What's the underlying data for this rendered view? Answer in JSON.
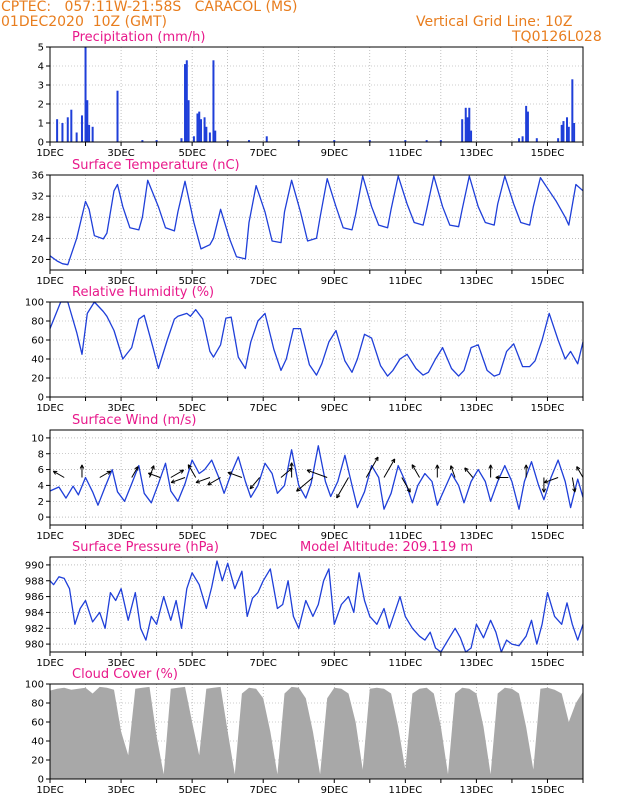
{
  "header": {
    "line1": "CPTEC:   057:11W-21:58S   CARACOL (MS)",
    "line2": "01DEC2020  10Z (GMT)",
    "grid_note": "Vertical Grid Line: 10Z",
    "code": "TQ0126L028"
  },
  "colors": {
    "header": "#e87d1e",
    "title": "#e8198b",
    "line": "#1f3fd9",
    "cloud": "#a8a8a8",
    "grid": "#999999"
  },
  "chart_data": [
    {
      "id": "precipitation",
      "type": "bar",
      "title": "Precipitation (mm/h)",
      "ylim": [
        0,
        5
      ],
      "yticks": [
        "0",
        "1",
        "2",
        "3",
        "4",
        "5"
      ],
      "xlabels": [
        "1DEC",
        "3DEC",
        "5DEC",
        "7DEC",
        "9DEC",
        "11DEC",
        "13DEC",
        "15DEC"
      ],
      "bars": [
        [
          0.2,
          1.2
        ],
        [
          0.35,
          1.0
        ],
        [
          0.5,
          1.3
        ],
        [
          0.6,
          1.7
        ],
        [
          0.75,
          0.5
        ],
        [
          0.9,
          1.4
        ],
        [
          1.0,
          5.0
        ],
        [
          1.05,
          2.2
        ],
        [
          1.1,
          0.9
        ],
        [
          1.2,
          0.8
        ],
        [
          1.9,
          2.7
        ],
        [
          2.6,
          0.1
        ],
        [
          3.0,
          0.1
        ],
        [
          3.7,
          0.2
        ],
        [
          3.8,
          4.1
        ],
        [
          3.85,
          4.3
        ],
        [
          3.9,
          2.2
        ],
        [
          4.05,
          0.3
        ],
        [
          4.15,
          1.5
        ],
        [
          4.2,
          1.6
        ],
        [
          4.25,
          1.2
        ],
        [
          4.35,
          1.3
        ],
        [
          4.4,
          0.8
        ],
        [
          4.5,
          0.5
        ],
        [
          4.6,
          4.3
        ],
        [
          4.65,
          0.6
        ],
        [
          5.0,
          0.1
        ],
        [
          5.6,
          0.1
        ],
        [
          6.1,
          0.3
        ],
        [
          7.0,
          0.1
        ],
        [
          8.0,
          0.1
        ],
        [
          9.0,
          0.1
        ],
        [
          10.0,
          0.1
        ],
        [
          10.6,
          0.1
        ],
        [
          11.0,
          0.1
        ],
        [
          11.6,
          1.2
        ],
        [
          11.7,
          1.8
        ],
        [
          11.75,
          1.3
        ],
        [
          11.8,
          1.8
        ],
        [
          11.85,
          0.6
        ],
        [
          13.2,
          0.2
        ],
        [
          13.3,
          0.3
        ],
        [
          13.4,
          1.9
        ],
        [
          13.45,
          1.6
        ],
        [
          13.7,
          0.2
        ],
        [
          14.3,
          0.2
        ],
        [
          14.4,
          0.9
        ],
        [
          14.45,
          1.1
        ],
        [
          14.55,
          1.3
        ],
        [
          14.6,
          0.8
        ],
        [
          14.7,
          3.3
        ],
        [
          14.75,
          1.0
        ]
      ]
    },
    {
      "id": "temperature",
      "type": "line",
      "title": "Surface Temperature (nC)",
      "ylim": [
        18,
        36
      ],
      "yticks": [
        "20",
        "24",
        "28",
        "32",
        "36"
      ],
      "xlabels": [
        "1DEC",
        "3DEC",
        "5DEC",
        "7DEC",
        "9DEC",
        "11DEC",
        "13DEC",
        "15DEC"
      ],
      "x": [
        0,
        0.2,
        0.35,
        0.5,
        0.75,
        1.0,
        1.1,
        1.25,
        1.5,
        1.6,
        1.8,
        1.9,
        2.05,
        2.25,
        2.5,
        2.6,
        2.75,
        3.05,
        3.25,
        3.5,
        3.6,
        3.8,
        4.05,
        4.25,
        4.5,
        4.6,
        4.8,
        5.05,
        5.25,
        5.5,
        5.6,
        5.8,
        6.05,
        6.25,
        6.5,
        6.6,
        6.8,
        7.05,
        7.25,
        7.5,
        7.6,
        7.8,
        8.05,
        8.25,
        8.5,
        8.6,
        8.8,
        9.05,
        9.25,
        9.5,
        9.6,
        9.8,
        10.05,
        10.25,
        10.5,
        10.6,
        10.8,
        11.05,
        11.25,
        11.5,
        11.6,
        11.8,
        12.05,
        12.25,
        12.5,
        12.6,
        12.8,
        13.05,
        13.25,
        13.5,
        13.6,
        13.8,
        14.05,
        14.25,
        14.5,
        14.6,
        14.8,
        15.0
      ],
      "y": [
        20.7,
        19.7,
        19.2,
        19.0,
        24.0,
        31.0,
        29.5,
        24.5,
        23.9,
        25.0,
        33.0,
        34.2,
        30.0,
        26.0,
        25.6,
        28.0,
        35.0,
        30.0,
        26.0,
        25.4,
        29.0,
        34.8,
        27.0,
        22.0,
        22.8,
        24.0,
        29.5,
        24.0,
        20.5,
        20.1,
        27.0,
        34.0,
        29.0,
        23.5,
        23.2,
        29.0,
        35.0,
        29.0,
        23.5,
        24.0,
        28.0,
        35.3,
        30.0,
        26.0,
        25.6,
        28.5,
        35.8,
        30.0,
        26.5,
        26.0,
        29.5,
        35.8,
        30.5,
        27.0,
        26.5,
        29.5,
        35.8,
        30.0,
        26.5,
        26.2,
        29.5,
        35.8,
        30.0,
        27.0,
        26.5,
        30.5,
        35.8,
        30.5,
        27.0,
        26.5,
        30.0,
        35.5,
        33.0,
        31.0,
        28.0,
        26.5,
        34.2,
        33.0
      ]
    },
    {
      "id": "humidity",
      "type": "line",
      "title": "Relative Humidity (%)",
      "ylim": [
        0,
        100
      ],
      "yticks": [
        "0",
        "20",
        "40",
        "60",
        "80",
        "100"
      ],
      "xlabels": [
        "1DEC",
        "3DEC",
        "5DEC",
        "7DEC",
        "9DEC",
        "11DEC",
        "13DEC",
        "15DEC"
      ],
      "x": [
        0,
        0.3,
        0.5,
        0.75,
        0.9,
        1.05,
        1.25,
        1.5,
        1.6,
        1.8,
        2.05,
        2.3,
        2.5,
        2.65,
        2.9,
        3.05,
        3.3,
        3.5,
        3.6,
        3.85,
        3.95,
        4.1,
        4.3,
        4.5,
        4.6,
        4.8,
        4.95,
        5.1,
        5.3,
        5.5,
        5.65,
        5.85,
        6.05,
        6.3,
        6.5,
        6.65,
        6.85,
        7.05,
        7.3,
        7.5,
        7.65,
        7.85,
        8.05,
        8.3,
        8.5,
        8.65,
        8.85,
        9.05,
        9.3,
        9.5,
        9.65,
        9.85,
        10.05,
        10.3,
        10.5,
        10.65,
        10.85,
        11.05,
        11.3,
        11.5,
        11.65,
        11.85,
        12.05,
        12.3,
        12.5,
        12.65,
        12.85,
        13.05,
        13.3,
        13.5,
        13.65,
        13.85,
        14.05,
        14.3,
        14.5,
        14.65,
        14.85,
        15.0
      ],
      "y": [
        72,
        100,
        100,
        68,
        45,
        88,
        100,
        90,
        85,
        70,
        40,
        52,
        82,
        86,
        52,
        30,
        60,
        82,
        85,
        88,
        85,
        92,
        82,
        48,
        42,
        55,
        83,
        84,
        42,
        30,
        58,
        80,
        88,
        50,
        28,
        40,
        72,
        72,
        34,
        23,
        35,
        58,
        70,
        38,
        26,
        40,
        66,
        62,
        33,
        22,
        28,
        40,
        45,
        30,
        23,
        26,
        40,
        52,
        30,
        22,
        28,
        52,
        55,
        28,
        22,
        24,
        48,
        56,
        32,
        32,
        38,
        60,
        88,
        60,
        40,
        48,
        35,
        58
      ]
    },
    {
      "id": "wind",
      "type": "line",
      "title": "Surface Wind (m/s)",
      "ylim": [
        -1,
        11
      ],
      "yticks": [
        "0",
        "2",
        "4",
        "6",
        "8",
        "10"
      ],
      "xlabels": [
        "1DEC",
        "3DEC",
        "5DEC",
        "7DEC",
        "9DEC",
        "11DEC",
        "13DEC",
        "15DEC"
      ],
      "x": [
        0,
        0.25,
        0.45,
        0.65,
        0.8,
        1.0,
        1.2,
        1.35,
        1.55,
        1.75,
        1.9,
        2.1,
        2.3,
        2.5,
        2.65,
        2.85,
        3.05,
        3.25,
        3.4,
        3.6,
        3.8,
        4.0,
        4.2,
        4.35,
        4.55,
        4.75,
        4.9,
        5.1,
        5.3,
        5.5,
        5.65,
        5.85,
        6.05,
        6.25,
        6.4,
        6.6,
        6.8,
        7.0,
        7.2,
        7.35,
        7.55,
        7.75,
        7.9,
        8.1,
        8.3,
        8.5,
        8.65,
        8.85,
        9.05,
        9.25,
        9.4,
        9.6,
        9.8,
        10.0,
        10.2,
        10.35,
        10.55,
        10.75,
        10.9,
        11.1,
        11.3,
        11.5,
        11.65,
        11.85,
        12.05,
        12.25,
        12.4,
        12.6,
        12.8,
        13.0,
        13.2,
        13.35,
        13.55,
        13.75,
        13.9,
        14.1,
        14.3,
        14.5,
        14.65,
        14.85,
        15.0
      ],
      "y": [
        3.3,
        3.8,
        2.4,
        3.9,
        2.8,
        5.0,
        3.2,
        1.5,
        3.8,
        6.0,
        3.2,
        2.0,
        4.2,
        6.5,
        3.0,
        1.8,
        4.2,
        6.8,
        3.3,
        2.0,
        4.2,
        7.2,
        5.5,
        6.0,
        7.2,
        5.0,
        3.0,
        5.5,
        7.6,
        4.5,
        2.5,
        4.0,
        6.8,
        5.5,
        3.0,
        4.0,
        8.5,
        4.0,
        2.4,
        4.3,
        9.0,
        4.5,
        2.6,
        4.5,
        7.8,
        4.0,
        1.2,
        3.2,
        6.5,
        5.0,
        1.0,
        3.0,
        6.5,
        4.5,
        1.8,
        4.0,
        5.5,
        4.5,
        1.5,
        3.5,
        5.5,
        4.0,
        1.8,
        4.5,
        6.0,
        4.5,
        2.0,
        4.5,
        6.5,
        4.5,
        1.0,
        4.5,
        7.0,
        4.0,
        2.2,
        5.0,
        7.2,
        4.5,
        1.2,
        4.8,
        2.5
      ]
    },
    {
      "id": "pressure",
      "type": "line",
      "title": "Surface Pressure (hPa)",
      "annotation": "Model Altitude: 209.119  m",
      "ylim": [
        979,
        991
      ],
      "yticks": [
        "980",
        "982",
        "984",
        "986",
        "988",
        "990"
      ],
      "xlabels": [
        "1DEC",
        "3DEC",
        "5DEC",
        "7DEC",
        "9DEC",
        "11DEC",
        "13DEC",
        "15DEC"
      ],
      "x": [
        0,
        0.1,
        0.25,
        0.4,
        0.55,
        0.7,
        0.85,
        1.0,
        1.2,
        1.4,
        1.55,
        1.7,
        1.85,
        2.0,
        2.2,
        2.4,
        2.55,
        2.7,
        2.85,
        3.0,
        3.2,
        3.4,
        3.55,
        3.7,
        3.85,
        4.0,
        4.2,
        4.4,
        4.55,
        4.7,
        4.85,
        5.0,
        5.2,
        5.4,
        5.55,
        5.7,
        5.85,
        6.0,
        6.2,
        6.4,
        6.55,
        6.7,
        6.85,
        7.0,
        7.2,
        7.4,
        7.55,
        7.7,
        7.85,
        8.0,
        8.2,
        8.4,
        8.55,
        8.7,
        8.85,
        9.0,
        9.2,
        9.4,
        9.55,
        9.7,
        9.85,
        10.0,
        10.2,
        10.4,
        10.55,
        10.7,
        10.85,
        11.0,
        11.2,
        11.4,
        11.55,
        11.7,
        11.85,
        12.0,
        12.2,
        12.4,
        12.55,
        12.7,
        12.85,
        13.0,
        13.2,
        13.4,
        13.55,
        13.7,
        13.85,
        14.0,
        14.2,
        14.4,
        14.55,
        14.7,
        14.85,
        15.0
      ],
      "y": [
        988.0,
        987.5,
        988.5,
        988.3,
        987.0,
        982.5,
        984.5,
        985.5,
        982.8,
        984.0,
        982.0,
        986.5,
        985.5,
        987.0,
        983.0,
        986.5,
        982.0,
        980.5,
        983.5,
        982.5,
        986.0,
        983.0,
        985.5,
        982.0,
        987.0,
        989.0,
        987.5,
        984.5,
        987.2,
        990.5,
        988.0,
        990.2,
        987.0,
        989.2,
        983.5,
        985.8,
        986.5,
        988.0,
        989.5,
        984.5,
        985.0,
        988.0,
        983.5,
        982.0,
        985.5,
        983.5,
        985.0,
        988.0,
        989.5,
        982.5,
        985.0,
        986.0,
        984.0,
        989.0,
        985.5,
        983.5,
        982.5,
        984.5,
        982.0,
        984.0,
        986.0,
        983.5,
        982.0,
        981.0,
        980.5,
        981.5,
        979.5,
        978.0,
        980.5,
        982.0,
        980.8,
        978.5,
        979.5,
        982.5,
        980.8,
        983.0,
        981.5,
        978.5,
        980.5,
        980.0,
        979.8,
        981.0,
        983.0,
        980.0,
        982.5,
        986.5,
        983.5,
        982.5,
        985.2,
        982.5,
        980.5,
        982.5
      ]
    },
    {
      "id": "cloud",
      "type": "area",
      "title": "Cloud Cover (%)",
      "ylim": [
        0,
        100
      ],
      "yticks": [
        "0",
        "20",
        "40",
        "60",
        "80",
        "100"
      ],
      "xlabels": [
        "1DEC",
        "3DEC",
        "5DEC",
        "7DEC",
        "9DEC",
        "11DEC",
        "13DEC",
        "15DEC"
      ],
      "x": [
        0,
        0.2,
        0.4,
        0.6,
        0.8,
        1.0,
        1.2,
        1.4,
        1.6,
        1.8,
        2.0,
        2.2,
        2.4,
        2.6,
        2.8,
        3.0,
        3.2,
        3.4,
        3.6,
        3.8,
        4.0,
        4.2,
        4.4,
        4.6,
        4.8,
        5.0,
        5.2,
        5.4,
        5.6,
        5.8,
        6.0,
        6.2,
        6.4,
        6.6,
        6.8,
        7.0,
        7.2,
        7.4,
        7.6,
        7.8,
        8.0,
        8.2,
        8.4,
        8.6,
        8.8,
        9.0,
        9.2,
        9.4,
        9.6,
        9.8,
        10.0,
        10.2,
        10.4,
        10.6,
        10.8,
        11.0,
        11.2,
        11.4,
        11.6,
        11.8,
        12.0,
        12.2,
        12.4,
        12.6,
        12.8,
        13.0,
        13.2,
        13.4,
        13.6,
        13.8,
        14.0,
        14.2,
        14.4,
        14.6,
        14.8,
        15.0
      ],
      "y": [
        93,
        95,
        96,
        94,
        95,
        96,
        90,
        97,
        96,
        94,
        50,
        25,
        95,
        96,
        97,
        45,
        5,
        95,
        96,
        97,
        60,
        25,
        95,
        96,
        97,
        50,
        5,
        90,
        96,
        95,
        85,
        50,
        5,
        90,
        97,
        96,
        85,
        50,
        5,
        85,
        96,
        95,
        90,
        60,
        10,
        95,
        96,
        95,
        90,
        55,
        10,
        90,
        95,
        96,
        90,
        55,
        5,
        90,
        96,
        95,
        90,
        55,
        5,
        90,
        96,
        95,
        90,
        55,
        10,
        95,
        96,
        94,
        90,
        60,
        80,
        92
      ]
    }
  ],
  "wind_arrows": {
    "x": [
      0.4,
      0.9,
      1.4,
      2.3,
      2.8,
      3.1,
      3.4,
      3.8,
      4.1,
      4.5,
      4.8,
      5.4,
      5.9,
      6.5,
      6.8,
      7.4,
      7.8,
      8.4,
      8.9,
      9.4,
      9.9,
      10.4,
      10.9,
      11.4,
      11.9,
      12.4,
      12.9,
      13.4,
      13.9,
      14.3,
      14.7,
      15.0
    ],
    "dir_deg": [
      150,
      90,
      30,
      60,
      70,
      160,
      30,
      200,
      120,
      200,
      210,
      160,
      230,
      40,
      90,
      220,
      160,
      240,
      60,
      60,
      300,
      120,
      90,
      110,
      130,
      90,
      180,
      90,
      270,
      200,
      280,
      120
    ],
    "speed": [
      3,
      3,
      3,
      3,
      3,
      3,
      4,
      4,
      4,
      4,
      4,
      4,
      4,
      4,
      4,
      7,
      7,
      8,
      8,
      7,
      5,
      4,
      3,
      3,
      3,
      3,
      3,
      3,
      4,
      4,
      4,
      3
    ]
  }
}
